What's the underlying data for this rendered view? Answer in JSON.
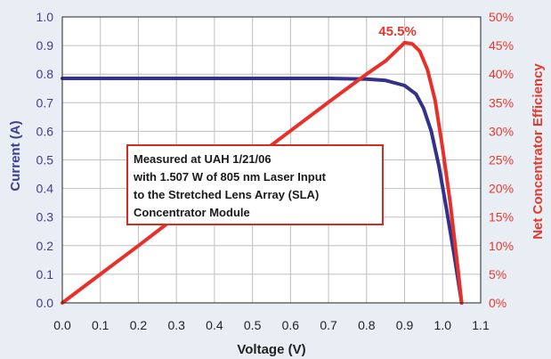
{
  "chart_data": {
    "type": "line",
    "xlabel": "Voltage (V)",
    "ylabel": "Current (A)",
    "y2label": "Net Concentrator Efficiency",
    "xlim": [
      0.0,
      1.1
    ],
    "ylim": [
      0.0,
      1.0
    ],
    "y2lim": [
      0,
      50
    ],
    "x_ticks": [
      "0.0",
      "0.1",
      "0.2",
      "0.3",
      "0.4",
      "0.5",
      "0.6",
      "0.7",
      "0.8",
      "0.9",
      "1.0",
      "1.1"
    ],
    "y_ticks": [
      "0.0",
      "0.1",
      "0.2",
      "0.3",
      "0.4",
      "0.5",
      "0.6",
      "0.7",
      "0.8",
      "0.9",
      "1.0"
    ],
    "y2_ticks": [
      "0%",
      "5%",
      "10%",
      "15%",
      "20%",
      "25%",
      "30%",
      "35%",
      "40%",
      "45%",
      "50%"
    ],
    "grid": true,
    "series": [
      {
        "axis": "left",
        "color": "#33318a",
        "points": [
          [
            0.0,
            0.785
          ],
          [
            0.1,
            0.785
          ],
          [
            0.2,
            0.785
          ],
          [
            0.3,
            0.785
          ],
          [
            0.4,
            0.785
          ],
          [
            0.5,
            0.785
          ],
          [
            0.6,
            0.785
          ],
          [
            0.7,
            0.785
          ],
          [
            0.8,
            0.783
          ],
          [
            0.85,
            0.778
          ],
          [
            0.9,
            0.76
          ],
          [
            0.93,
            0.73
          ],
          [
            0.95,
            0.68
          ],
          [
            0.97,
            0.6
          ],
          [
            0.99,
            0.48
          ],
          [
            1.01,
            0.33
          ],
          [
            1.03,
            0.17
          ],
          [
            1.05,
            0.0
          ]
        ]
      },
      {
        "axis": "right",
        "color": "#e8302a",
        "points": [
          [
            0.0,
            0.0
          ],
          [
            0.1,
            5.0
          ],
          [
            0.2,
            10.0
          ],
          [
            0.3,
            15.1
          ],
          [
            0.4,
            20.1
          ],
          [
            0.5,
            25.1
          ],
          [
            0.6,
            30.1
          ],
          [
            0.7,
            35.1
          ],
          [
            0.8,
            40.0
          ],
          [
            0.85,
            42.3
          ],
          [
            0.88,
            44.2
          ],
          [
            0.9,
            45.5
          ],
          [
            0.92,
            45.3
          ],
          [
            0.94,
            44.0
          ],
          [
            0.96,
            40.8
          ],
          [
            0.98,
            35.5
          ],
          [
            1.0,
            27.0
          ],
          [
            1.02,
            17.5
          ],
          [
            1.04,
            6.0
          ],
          [
            1.05,
            0.0
          ]
        ]
      }
    ],
    "annotations": {
      "peak_label": "45.5%",
      "peak_x": 0.9,
      "peak_y2": 45.5,
      "note": [
        "Measured at UAH 1/21/06",
        "with 1.507 W of 805 nm Laser Input",
        "to the Stretched Lens Array (SLA)",
        "Concentrator Module"
      ]
    },
    "colors": {
      "left_axis": "#3d3f8c",
      "right_axis": "#e23a2f",
      "note_border": "#d42b22"
    }
  }
}
